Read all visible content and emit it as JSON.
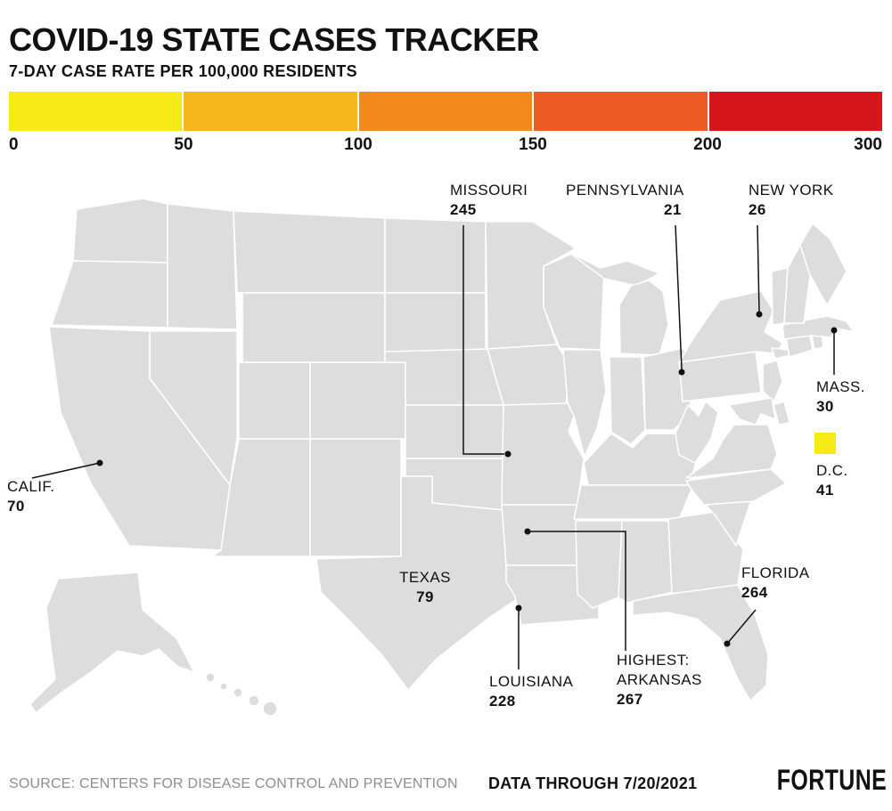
{
  "header": {
    "title": "COVID-19 STATE CASES TRACKER",
    "subtitle": "7-DAY CASE RATE PER 100,000 RESIDENTS"
  },
  "legend": {
    "tick_labels": [
      "0",
      "50",
      "100",
      "150",
      "200",
      "300"
    ]
  },
  "chart_data": {
    "type": "heatmap",
    "subtype": "us-state-choropleth",
    "title": "COVID-19 STATE CASES TRACKER",
    "metric": "7-DAY CASE RATE PER 100,000 RESIDENTS",
    "data_through": "7/20/2021",
    "source": "Centers for Disease Control and Prevention",
    "scale": {
      "ticks": [
        0,
        50,
        100,
        150,
        200,
        300
      ],
      "bin_ranges": [
        "0-50",
        "50-100",
        "100-150",
        "150-200",
        "200-300"
      ],
      "colors": [
        "#F6EB16",
        "#F4B81C",
        "#F28A1D",
        "#ED5A24",
        "#D5171D"
      ]
    },
    "labeled_values": {
      "MISSOURI": 245,
      "PENNSYLVANIA": 21,
      "NEW YORK": 26,
      "MASS.": 30,
      "D.C.": 41,
      "CALIF.": 70,
      "TEXAS": 79,
      "FLORIDA": 264,
      "LOUISIANA": 228,
      "ARKANSAS": 267
    },
    "highest": {
      "state": "ARKANSAS",
      "value": 267
    },
    "state_fill_bins": {
      "WA": 2,
      "OR": 2,
      "ID": 2,
      "MT": 0,
      "WY": 2,
      "NV": 3,
      "UT": 2,
      "CO": 1,
      "AZ": 2,
      "NM": 0,
      "CA": 1,
      "ND": 0,
      "SD": 0,
      "NE": 0,
      "KS": 1,
      "OK": 2,
      "TX": 1,
      "MN": 0,
      "IA": 0,
      "MO": 4,
      "AR": 4,
      "LA": 4,
      "WI": 0,
      "IL": 0,
      "MI": 0,
      "IN": 1,
      "OH": 0,
      "KY": 1,
      "TN": 1,
      "MS": 3,
      "AL": 2,
      "GA": 1,
      "FL": 4,
      "SC": 1,
      "NC": 1,
      "VA": 0,
      "WV": 0,
      "PA": 0,
      "NY": 0,
      "NJ": 1,
      "DE": 1,
      "MD": 0,
      "CT": 0,
      "RI": 0,
      "MA": 0,
      "VT": 0,
      "NH": 0,
      "ME": 0,
      "AK": 2,
      "HI": 2,
      "DC": 0
    }
  },
  "annotations": {
    "missouri": {
      "name": "MISSOURI",
      "value": "245"
    },
    "pennsylvania": {
      "name": "PENNSYLVANIA",
      "value": "21"
    },
    "new_york": {
      "name": "NEW YORK",
      "value": "26"
    },
    "mass": {
      "name": "MASS.",
      "value": "30"
    },
    "dc": {
      "name": "D.C.",
      "value": "41"
    },
    "calif": {
      "name": "CALIF.",
      "value": "70"
    },
    "texas": {
      "name": "TEXAS",
      "value": "79"
    },
    "florida": {
      "name": "FLORIDA",
      "value": "264"
    },
    "louisiana": {
      "name": "LOUISIANA",
      "value": "228"
    },
    "arkansas": {
      "prefix": "HIGHEST:",
      "name": "ARKANSAS",
      "value": "267"
    }
  },
  "footer": {
    "source": "SOURCE: CENTERS FOR DISEASE CONTROL AND PREVENTION",
    "data_through": "DATA THROUGH 7/20/2021",
    "brand": "FORTUNE"
  }
}
